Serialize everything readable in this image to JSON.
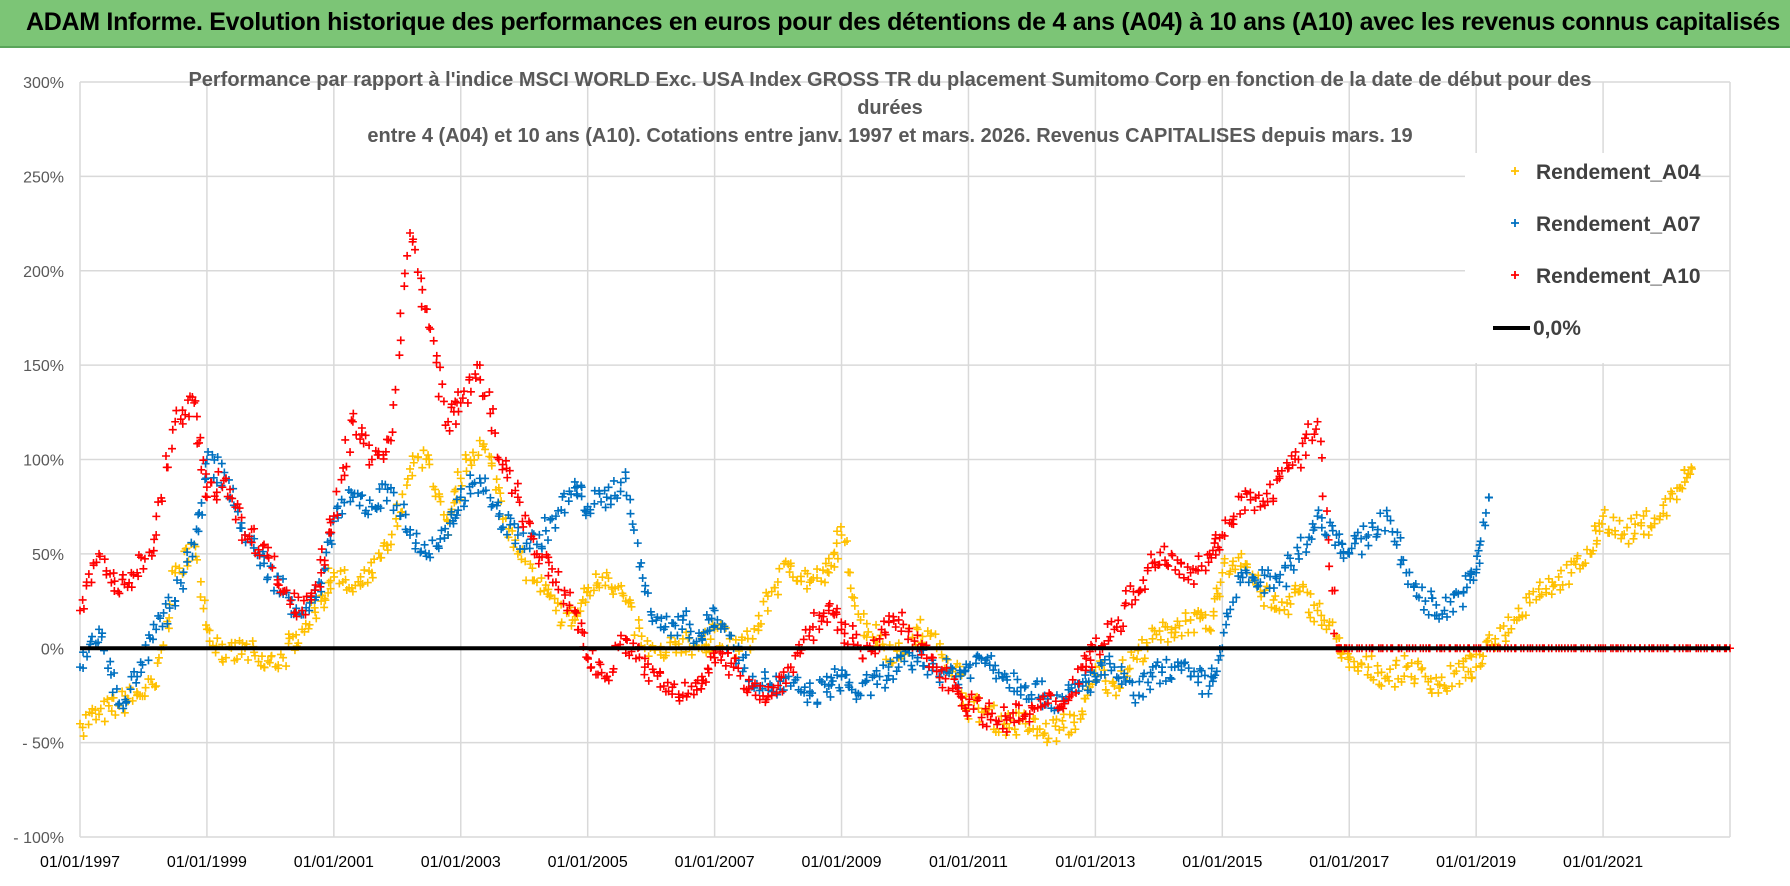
{
  "header": {
    "title": "ADAM Informe. Evolution historique des performances en euros pour des détentions de 4 ans (A04) à 10 ans (A10) avec les revenus connus capitalisés"
  },
  "chart_data": {
    "type": "scatter",
    "title_lines": [
      "Performance par rapport à l'indice MSCI WORLD Exc. USA Index GROSS TR  du placement Sumitomo Corp en fonction de la date de début pour des",
      "durées",
      "entre 4 (A04) et 10 ans (A10).  Cotations entre janv. 1997 et mars. 2026.  Revenus CAPITALISES depuis mars. 19"
    ],
    "x_tick_labels": [
      "01/01/1997",
      "01/01/1999",
      "01/01/2001",
      "01/01/2003",
      "01/01/2005",
      "01/01/2007",
      "01/01/2009",
      "01/01/2011",
      "01/01/2013",
      "01/01/2015",
      "01/01/2017",
      "01/01/2019",
      "01/01/2021"
    ],
    "y_tick_labels": [
      "300%",
      "250%",
      "200%",
      "150%",
      "100%",
      "50%",
      "0%",
      "- 50%",
      "- 100%"
    ],
    "xlim": [
      1997.0,
      2023.0
    ],
    "ylim": [
      -100,
      300
    ],
    "grid": true,
    "legend_position": "top-right",
    "series": [
      {
        "name": "Rendement_A04",
        "color": "#ffc000",
        "x": [
          1997.0,
          1997.3,
          1997.6,
          1997.9,
          1998.2,
          1998.5,
          1998.8,
          1999.0,
          1999.3,
          1999.6,
          1999.9,
          2000.2,
          2000.5,
          2000.8,
          2001.0,
          2001.3,
          2001.6,
          2001.9,
          2002.2,
          2002.5,
          2002.8,
          2003.0,
          2003.3,
          2003.6,
          2003.9,
          2004.2,
          2004.5,
          2004.8,
          2005.0,
          2005.3,
          2005.6,
          2005.9,
          2006.2,
          2006.5,
          2006.8,
          2007.0,
          2007.3,
          2007.6,
          2007.9,
          2008.2,
          2008.5,
          2008.8,
          2009.0,
          2009.3,
          2009.6,
          2009.9,
          2010.2,
          2010.5,
          2010.8,
          2011.0,
          2011.3,
          2011.6,
          2011.9,
          2012.2,
          2012.5,
          2012.8,
          2013.0,
          2013.3,
          2013.6,
          2013.9,
          2014.2,
          2014.5,
          2014.8,
          2015.0,
          2015.3,
          2015.6,
          2015.9,
          2016.2,
          2016.5,
          2016.8,
          2017.0,
          2017.3,
          2017.6,
          2017.9,
          2018.2,
          2018.5,
          2018.8,
          2019.0,
          2019.3,
          2019.6,
          2019.9,
          2020.2,
          2020.5,
          2020.8,
          2021.0,
          2021.3,
          2021.6,
          2021.9,
          2022.2,
          2022.4
        ],
        "y": [
          -40,
          -35,
          -30,
          -25,
          -20,
          40,
          55,
          10,
          -5,
          0,
          -10,
          -5,
          10,
          25,
          40,
          30,
          40,
          55,
          95,
          100,
          60,
          90,
          110,
          85,
          50,
          35,
          20,
          15,
          30,
          40,
          25,
          0,
          -5,
          5,
          0,
          10,
          0,
          5,
          30,
          45,
          35,
          40,
          60,
          15,
          5,
          -5,
          10,
          0,
          -10,
          -30,
          -35,
          -40,
          -40,
          -45,
          -42,
          -35,
          -10,
          -20,
          -5,
          5,
          10,
          15,
          10,
          40,
          50,
          30,
          20,
          30,
          20,
          5,
          -10,
          -10,
          -15,
          -10,
          -15,
          -20,
          -10,
          -10,
          5,
          15,
          30,
          35,
          40,
          50,
          70,
          60,
          65,
          70,
          85,
          95
        ]
      },
      {
        "name": "Rendement_A07",
        "color": "#0070c0",
        "x": [
          1997.0,
          1997.3,
          1997.6,
          1997.9,
          1998.2,
          1998.5,
          1998.8,
          1999.0,
          1999.3,
          1999.6,
          1999.9,
          2000.2,
          2000.5,
          2000.8,
          2001.0,
          2001.3,
          2001.6,
          2001.9,
          2002.2,
          2002.5,
          2002.8,
          2003.0,
          2003.3,
          2003.6,
          2003.9,
          2004.2,
          2004.5,
          2004.8,
          2005.0,
          2005.3,
          2005.6,
          2005.9,
          2006.2,
          2006.5,
          2006.8,
          2007.0,
          2007.3,
          2007.6,
          2007.9,
          2008.2,
          2008.5,
          2008.8,
          2009.0,
          2009.3,
          2009.6,
          2009.9,
          2010.2,
          2010.5,
          2010.8,
          2011.0,
          2011.3,
          2011.6,
          2011.9,
          2012.2,
          2012.5,
          2012.8,
          2013.0,
          2013.3,
          2013.6,
          2013.9,
          2014.2,
          2014.5,
          2014.8,
          2015.0,
          2015.3,
          2015.6,
          2015.9,
          2016.2,
          2016.5,
          2016.8,
          2017.0,
          2017.3,
          2017.6,
          2017.9,
          2018.2,
          2018.5,
          2018.8,
          2019.0,
          2019.2
        ],
        "y": [
          -10,
          10,
          -30,
          -15,
          10,
          25,
          55,
          100,
          90,
          60,
          45,
          30,
          20,
          30,
          70,
          80,
          75,
          85,
          60,
          50,
          60,
          80,
          90,
          70,
          60,
          55,
          70,
          85,
          75,
          80,
          90,
          30,
          10,
          15,
          5,
          20,
          0,
          -15,
          -20,
          -20,
          -25,
          -20,
          -15,
          -25,
          -15,
          -10,
          -5,
          -10,
          -15,
          -10,
          -5,
          -15,
          -20,
          -25,
          -28,
          -20,
          -15,
          -10,
          -25,
          -15,
          -10,
          -15,
          -20,
          0,
          40,
          35,
          35,
          50,
          70,
          60,
          50,
          60,
          70,
          40,
          25,
          20,
          30,
          40,
          80
        ]
      },
      {
        "name": "Rendement_A10",
        "color": "#ff0000",
        "x": [
          1997.0,
          1997.3,
          1997.6,
          1997.9,
          1998.2,
          1998.5,
          1998.8,
          1999.0,
          1999.3,
          1999.6,
          1999.9,
          2000.2,
          2000.5,
          2000.8,
          2001.0,
          2001.3,
          2001.6,
          2001.9,
          2002.2,
          2002.5,
          2002.8,
          2003.0,
          2003.3,
          2003.6,
          2003.9,
          2004.2,
          2004.5,
          2004.8,
          2005.0,
          2005.3,
          2005.6,
          2005.9,
          2006.2,
          2006.5,
          2006.8,
          2007.0,
          2007.3,
          2007.6,
          2007.9,
          2008.2,
          2008.5,
          2008.8,
          2009.0,
          2009.3,
          2009.6,
          2009.9,
          2010.2,
          2010.5,
          2010.8,
          2011.0,
          2011.3,
          2011.6,
          2011.9,
          2012.2,
          2012.5,
          2012.8,
          2013.0,
          2013.3,
          2013.6,
          2013.9,
          2014.2,
          2014.5,
          2014.8,
          2015.0,
          2015.3,
          2015.6,
          2015.9,
          2016.2,
          2016.5,
          2016.8,
          2017.0,
          2017.5,
          2018.0,
          2018.5,
          2019.0,
          2019.5,
          2020.0,
          2020.5,
          2021.0,
          2021.5,
          2022.0,
          2022.5,
          2023.0
        ],
        "y": [
          20,
          50,
          30,
          40,
          60,
          120,
          130,
          80,
          90,
          60,
          55,
          30,
          20,
          40,
          70,
          120,
          100,
          110,
          220,
          170,
          120,
          130,
          150,
          100,
          80,
          50,
          35,
          20,
          -5,
          -15,
          5,
          -10,
          -20,
          -25,
          -15,
          -5,
          -10,
          -20,
          -25,
          -10,
          10,
          20,
          10,
          0,
          5,
          15,
          0,
          -10,
          -20,
          -30,
          -35,
          -38,
          -35,
          -30,
          -28,
          -10,
          0,
          10,
          30,
          45,
          50,
          40,
          50,
          60,
          80,
          75,
          90,
          100,
          120,
          0,
          0,
          0,
          0,
          0,
          0,
          0,
          0,
          0,
          0,
          0,
          0,
          0,
          0
        ]
      },
      {
        "name": "0,0%",
        "color": "#000000",
        "x": [
          1997.0,
          2023.0
        ],
        "y": [
          0,
          0
        ]
      }
    ]
  }
}
